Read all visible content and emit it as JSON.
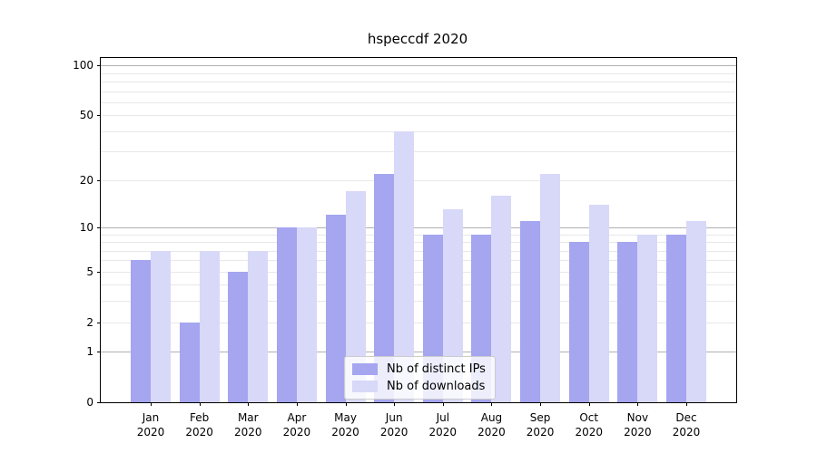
{
  "figure": {
    "title": "hspeccdf 2020"
  },
  "chart_data": {
    "type": "bar",
    "title": "hspeccdf 2020",
    "categories": [
      "Jan",
      "Feb",
      "Mar",
      "Apr",
      "May",
      "Jun",
      "Jul",
      "Aug",
      "Sep",
      "Oct",
      "Nov",
      "Dec"
    ],
    "x_year_label": "2020",
    "series": [
      {
        "name": "Nb of distinct IPs",
        "color": "#a5a5f0",
        "values": [
          6,
          2,
          5,
          10,
          12,
          22,
          9,
          9,
          11,
          8,
          8,
          9
        ]
      },
      {
        "name": "Nb of downloads",
        "color": "#d8d8f8",
        "values": [
          7,
          7,
          7,
          10,
          17,
          40,
          13,
          16,
          22,
          14,
          9,
          11
        ]
      }
    ],
    "xlabel": "",
    "ylabel": "",
    "yscale": "log1p",
    "ylim": [
      0,
      111
    ],
    "ytick_labels": [
      "100",
      "50",
      "20",
      "10",
      "5",
      "2",
      "1",
      "0"
    ],
    "ytick_values": [
      100,
      50,
      20,
      10,
      5,
      2,
      1,
      0
    ],
    "grid": {
      "on": true,
      "major_values": [
        1,
        10,
        100
      ],
      "minor_values": [
        2,
        3,
        4,
        5,
        6,
        7,
        8,
        9,
        20,
        30,
        40,
        50,
        60,
        70,
        80,
        90
      ],
      "major_color": "#b0b0b0",
      "minor_color": "#e8e8e8"
    },
    "legend": {
      "position": "inside-lower-center"
    }
  }
}
